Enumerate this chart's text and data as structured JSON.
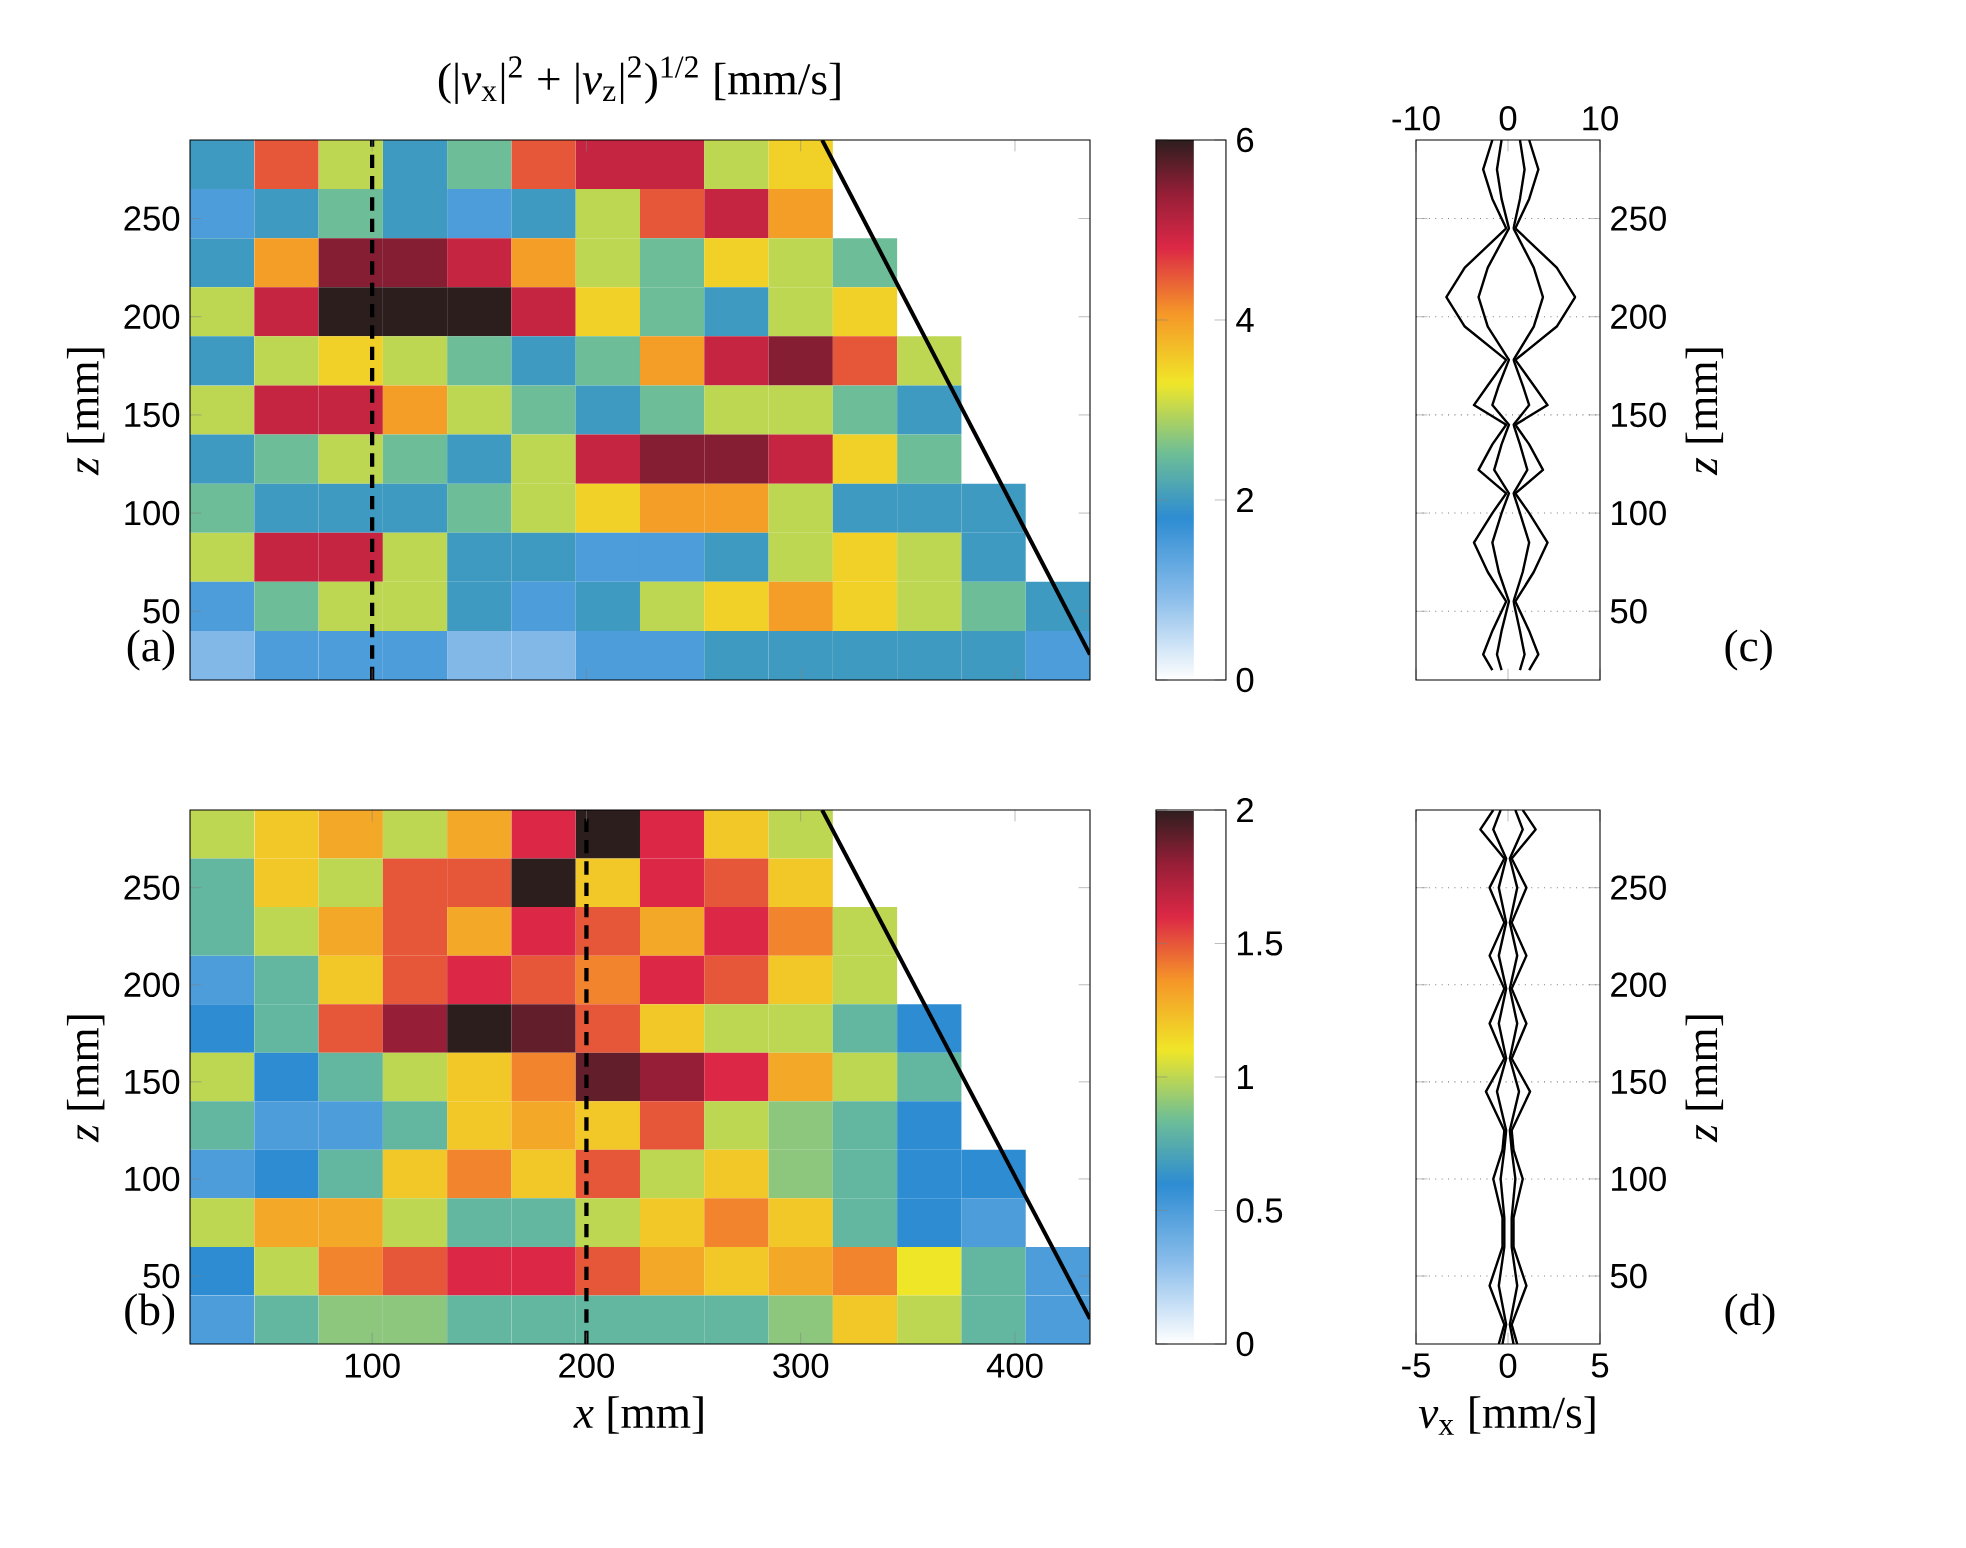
{
  "chart_data": [
    {
      "type": "heatmap",
      "title": "(|*v*$_{x}$|$^{2}$ + |*v*$_{z}$|$^{2}$)$^{1/2}$  [mm/s]",
      "ylabel": "*z* [mm]",
      "tick_labels": "y",
      "xlim": [
        15,
        435
      ],
      "ylim": [
        15,
        290
      ],
      "xticks": [
        100,
        200,
        300,
        400
      ],
      "yticks": [
        50,
        100,
        150,
        200,
        250
      ],
      "x": [
        30,
        60,
        90,
        120,
        150,
        180,
        210,
        240,
        270,
        300,
        330,
        360,
        390,
        420
      ],
      "y": [
        277.5,
        252.5,
        227.5,
        202.5,
        177.5,
        152.5,
        127.5,
        102.5,
        77.5,
        52.5,
        27.5
      ],
      "cells": [
        [
          2,
          4.5,
          3,
          2,
          2.5,
          4.5,
          5,
          5,
          3,
          3.5,
          null,
          null,
          null,
          null
        ],
        [
          1.5,
          2,
          2.5,
          2,
          1.5,
          2,
          3,
          4.5,
          5,
          4,
          null,
          null,
          null,
          null
        ],
        [
          2,
          4,
          5.5,
          5.5,
          5,
          4,
          3,
          2.5,
          3.5,
          3,
          2.5,
          null,
          null,
          null
        ],
        [
          3,
          5,
          6,
          6,
          6,
          5,
          3.5,
          2.5,
          2,
          3,
          3.5,
          null,
          null,
          null
        ],
        [
          2,
          3,
          3.5,
          3,
          2.5,
          2,
          2.5,
          4,
          5,
          5.5,
          4.5,
          3,
          null,
          null
        ],
        [
          3,
          5,
          5,
          4,
          3,
          2.5,
          2,
          2.5,
          3,
          3,
          2.5,
          2,
          null,
          null
        ],
        [
          2,
          2.5,
          3,
          2.5,
          2,
          3,
          5,
          5.5,
          5.5,
          5,
          3.5,
          2.5,
          null,
          null
        ],
        [
          2.5,
          2,
          2,
          2,
          2.5,
          3,
          3.5,
          4,
          4,
          3,
          2,
          2,
          2,
          null
        ],
        [
          3,
          5,
          5,
          3,
          2,
          2,
          1.5,
          1.5,
          2,
          3,
          3.5,
          3,
          2,
          null
        ],
        [
          1.5,
          2.5,
          3,
          3,
          2,
          1.5,
          2,
          3,
          3.5,
          4,
          3.5,
          3,
          2.5,
          2
        ],
        [
          1,
          1.5,
          1.5,
          1.5,
          1,
          1,
          1.5,
          1.5,
          2,
          2,
          2,
          2,
          2,
          1.5
        ]
      ],
      "clim": [
        0,
        6
      ],
      "cticks": [
        0,
        2,
        4,
        6
      ],
      "ref_lines": [
        {
          "axis": "x",
          "value": 100,
          "color": "#000000",
          "line_style": "dashed"
        }
      ],
      "series": [
        {
          "type": "line",
          "color": "#000000",
          "x": [
            310,
            435
          ],
          "values": [
            290,
            28
          ]
        }
      ],
      "annotations": [
        "(a)"
      ]
    },
    {
      "type": "heatmap",
      "xlabel": "*x* [mm]",
      "ylabel": "*z* [mm]",
      "xlim": [
        15,
        435
      ],
      "ylim": [
        15,
        290
      ],
      "xticks": [
        100,
        200,
        300,
        400
      ],
      "yticks": [
        50,
        100,
        150,
        200,
        250
      ],
      "x": [
        30,
        60,
        90,
        120,
        150,
        180,
        210,
        240,
        270,
        300,
        330,
        360,
        390,
        420
      ],
      "y": [
        277.5,
        252.5,
        227.5,
        202.5,
        177.5,
        152.5,
        127.5,
        102.5,
        77.5,
        52.5,
        27.5
      ],
      "cells": [
        [
          1,
          1.2,
          1.3,
          1,
          1.3,
          1.6,
          2,
          1.6,
          1.2,
          1,
          null,
          null,
          null,
          null
        ],
        [
          0.8,
          1.2,
          1,
          1.5,
          1.5,
          2,
          1.2,
          1.6,
          1.5,
          1.2,
          null,
          null,
          null,
          null
        ],
        [
          0.8,
          1,
          1.3,
          1.5,
          1.3,
          1.6,
          1.5,
          1.3,
          1.6,
          1.4,
          1,
          null,
          null,
          null
        ],
        [
          0.5,
          0.8,
          1.2,
          1.5,
          1.6,
          1.5,
          1.4,
          1.6,
          1.5,
          1.2,
          1,
          null,
          null,
          null
        ],
        [
          0.6,
          0.8,
          1.5,
          1.8,
          2,
          1.9,
          1.5,
          1.2,
          1,
          1,
          0.8,
          0.6,
          null,
          null
        ],
        [
          1,
          0.6,
          0.8,
          1,
          1.2,
          1.4,
          1.9,
          1.8,
          1.6,
          1.3,
          1,
          0.8,
          null,
          null
        ],
        [
          0.8,
          0.5,
          0.5,
          0.8,
          1.2,
          1.3,
          1.2,
          1.5,
          1,
          0.9,
          0.8,
          0.6,
          null,
          null
        ],
        [
          0.5,
          0.6,
          0.8,
          1.2,
          1.4,
          1.2,
          1.5,
          1,
          1.2,
          0.9,
          0.8,
          0.6,
          0.6,
          null
        ],
        [
          1,
          1.3,
          1.3,
          1,
          0.8,
          0.8,
          1,
          1.2,
          1.4,
          1.2,
          0.8,
          0.6,
          0.5,
          null
        ],
        [
          0.6,
          1,
          1.4,
          1.5,
          1.6,
          1.6,
          1.5,
          1.3,
          1.2,
          1.3,
          1.4,
          1.1,
          0.8,
          0.5
        ],
        [
          0.5,
          0.8,
          0.9,
          0.9,
          0.8,
          0.8,
          0.8,
          0.8,
          0.8,
          0.9,
          1.2,
          1,
          0.8,
          0.5
        ]
      ],
      "clim": [
        0,
        2
      ],
      "cticks": [
        0,
        0.5,
        1,
        1.5,
        2
      ],
      "ref_lines": [
        {
          "axis": "x",
          "value": 200,
          "color": "#000000",
          "line_style": "dashed"
        }
      ],
      "series": [
        {
          "type": "line",
          "color": "#000000",
          "x": [
            310,
            435
          ],
          "values": [
            290,
            28
          ]
        }
      ],
      "annotations": [
        "(b)"
      ]
    },
    {
      "type": "line",
      "grid": "y",
      "xlim": [
        -10,
        10
      ],
      "xticks": [
        -10,
        0,
        10
      ],
      "ylim": [
        15,
        290
      ],
      "yticks": [
        50,
        100,
        150,
        200,
        250
      ],
      "ylabel": "*z* [mm]",
      "series": [
        {
          "color": "#000000",
          "x": [
            2.3,
            3.3,
            2.3,
            0.8,
            2.8,
            4.3,
            2.3,
            0.8,
            3.8,
            2.3,
            0.8,
            4.3,
            2.8,
            0.8,
            5.3,
            7.3,
            5.3,
            0.8,
            2.3,
            3.3,
            2.3
          ],
          "values": [
            20,
            28,
            40,
            55,
            70,
            85,
            100,
            110,
            122,
            135,
            145,
            155,
            165,
            178,
            195,
            210,
            225,
            245,
            260,
            275,
            290
          ]
        },
        {
          "color": "#000000",
          "x": [
            -1.7,
            -2.7,
            -1.7,
            -0.2,
            -2.2,
            -3.7,
            -1.7,
            -0.2,
            -3.2,
            -1.7,
            -0.2,
            -3.7,
            -2.2,
            -0.2,
            -4.7,
            -6.7,
            -4.7,
            -0.2,
            -1.7,
            -2.7,
            -1.7
          ],
          "values": [
            20,
            28,
            40,
            55,
            70,
            85,
            100,
            110,
            122,
            135,
            145,
            155,
            165,
            178,
            195,
            210,
            225,
            245,
            260,
            275,
            290
          ]
        },
        {
          "color": "#000000",
          "x": [
            1.3,
            1.8,
            1.3,
            0.6,
            1.6,
            2.3,
            1.3,
            0.6,
            2.1,
            1.3,
            0.6,
            2.3,
            1.6,
            0.6,
            2.8,
            3.8,
            2.8,
            0.6,
            1.3,
            1.8,
            1.3
          ],
          "values": [
            20,
            28,
            40,
            55,
            70,
            85,
            100,
            110,
            122,
            135,
            145,
            155,
            165,
            178,
            195,
            210,
            225,
            245,
            260,
            275,
            290
          ]
        },
        {
          "color": "#000000",
          "x": [
            -0.7,
            -1.2,
            -0.7,
            0.1,
            -1.0,
            -1.7,
            -0.7,
            0.1,
            -1.5,
            -0.7,
            0.1,
            -1.7,
            -1.0,
            0.1,
            -2.2,
            -3.2,
            -2.2,
            0.1,
            -0.7,
            -1.2,
            -0.7
          ],
          "values": [
            20,
            28,
            40,
            55,
            70,
            85,
            100,
            110,
            122,
            135,
            145,
            155,
            165,
            178,
            195,
            210,
            225,
            245,
            260,
            275,
            290
          ]
        }
      ],
      "annotations": [
        "(c)"
      ]
    },
    {
      "type": "line",
      "grid": "y",
      "xlim": [
        -5,
        5
      ],
      "xticks": [
        -5,
        0,
        5
      ],
      "xlabel": "*v*$_{x}$ [mm/s]",
      "ylim": [
        15,
        290
      ],
      "yticks": [
        50,
        100,
        150,
        200,
        250
      ],
      "ylabel": "*z* [mm]",
      "series": [
        {
          "color": "#000000",
          "x": [
            0.5,
            0.2,
            1,
            0.3,
            0.3,
            0.8,
            0.3,
            0.2,
            1.2,
            0.2,
            1,
            0.2,
            1,
            0.2,
            1,
            0.2,
            1.5,
            0.8
          ],
          "values": [
            15,
            25,
            45,
            65,
            80,
            100,
            115,
            125,
            145,
            162,
            180,
            198,
            215,
            232,
            250,
            265,
            280,
            290
          ]
        },
        {
          "color": "#000000",
          "x": [
            -0.5,
            -0.2,
            -1,
            -0.3,
            -0.3,
            -0.8,
            -0.3,
            -0.2,
            -1.2,
            -0.2,
            -1,
            -0.2,
            -1,
            -0.2,
            -1,
            -0.2,
            -1.5,
            -0.8
          ],
          "values": [
            15,
            25,
            45,
            65,
            80,
            100,
            115,
            125,
            145,
            162,
            180,
            198,
            215,
            232,
            250,
            265,
            280,
            290
          ]
        },
        {
          "color": "#000000",
          "x": [
            0.3,
            0.1,
            0.5,
            0.2,
            0.2,
            0.4,
            0.2,
            0.1,
            0.6,
            0.1,
            0.5,
            0.1,
            0.5,
            0.1,
            0.5,
            0.1,
            0.8,
            0.4
          ],
          "values": [
            15,
            25,
            45,
            65,
            80,
            100,
            115,
            125,
            145,
            162,
            180,
            198,
            215,
            232,
            250,
            265,
            280,
            290
          ]
        },
        {
          "color": "#000000",
          "x": [
            -0.3,
            -0.1,
            -0.5,
            -0.2,
            -0.2,
            -0.4,
            -0.2,
            -0.1,
            -0.6,
            -0.1,
            -0.5,
            -0.1,
            -0.5,
            -0.1,
            -0.5,
            -0.1,
            -0.8,
            -0.4
          ],
          "values": [
            15,
            25,
            45,
            65,
            80,
            100,
            115,
            125,
            145,
            162,
            180,
            198,
            215,
            232,
            250,
            265,
            280,
            290
          ]
        }
      ],
      "annotations": [
        "(d)"
      ]
    }
  ]
}
